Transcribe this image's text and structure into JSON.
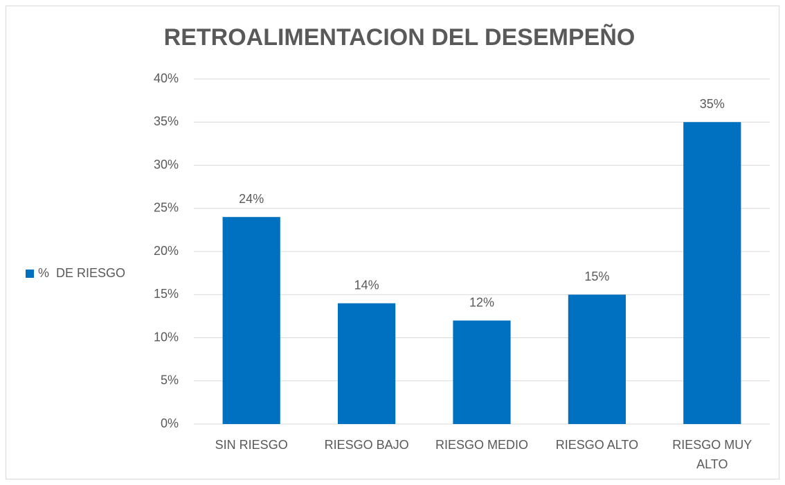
{
  "chart_data": {
    "type": "bar",
    "title": "RETROALIMENTACION DEL DESEMPEÑO",
    "categories": [
      "SIN RIESGO",
      "RIESGO BAJO",
      "RIESGO MEDIO",
      "RIESGO ALTO",
      "RIESGO MUY ALTO"
    ],
    "series": [
      {
        "name": "%  DE RIESGO",
        "color": "#0070c0",
        "values": [
          24,
          14,
          12,
          15,
          35
        ],
        "value_labels": [
          "24%",
          "14%",
          "12%",
          "15%",
          "35%"
        ]
      }
    ],
    "ylim": [
      0,
      40
    ],
    "yticks": [
      {
        "value": 0,
        "label": "0%"
      },
      {
        "value": 5,
        "label": "5%"
      },
      {
        "value": 10,
        "label": "10%"
      },
      {
        "value": 15,
        "label": "15%"
      },
      {
        "value": 20,
        "label": "20%"
      },
      {
        "value": 25,
        "label": "25%"
      },
      {
        "value": 30,
        "label": "30%"
      },
      {
        "value": 35,
        "label": "35%"
      },
      {
        "value": 40,
        "label": "40%"
      }
    ],
    "grid": true,
    "legend": "left"
  }
}
